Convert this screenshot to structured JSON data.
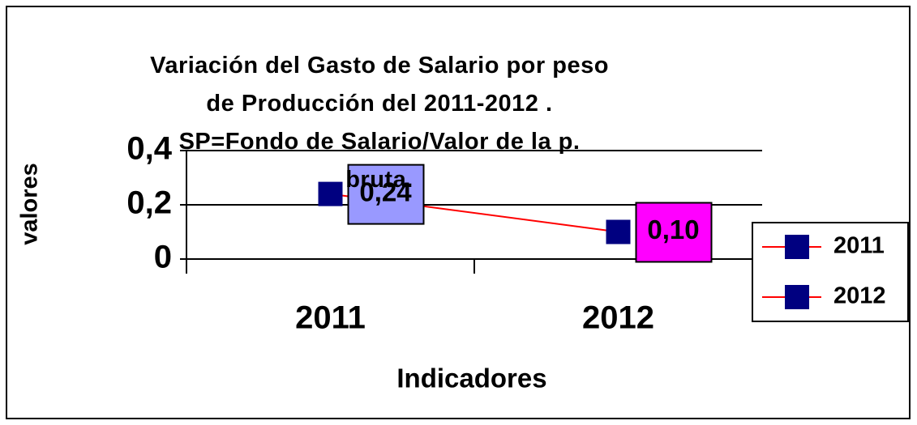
{
  "chart_data": {
    "type": "line",
    "title": "Variación del Gasto de Salario por peso de Producción del 2011-2012 . SP=Fondo de Salario/Valor de la p. bruta.",
    "x_label": "Indicadores",
    "y_label": "valores",
    "categories": [
      "2011",
      "2012"
    ],
    "values": [
      0.24,
      0.1
    ],
    "value_labels": [
      "0,24",
      "0,10"
    ],
    "label_colors": [
      "#9999ff",
      "#ff00ff"
    ],
    "line_color": "#ff0000",
    "marker_color": "#000080",
    "ylim": [
      0,
      0.4
    ],
    "yticks": [
      0,
      {
        "value": 0.2,
        "label": "0,2"
      },
      {
        "value": 0.4,
        "label": "0,4"
      }
    ],
    "grid": true,
    "legend_position": "right"
  }
}
